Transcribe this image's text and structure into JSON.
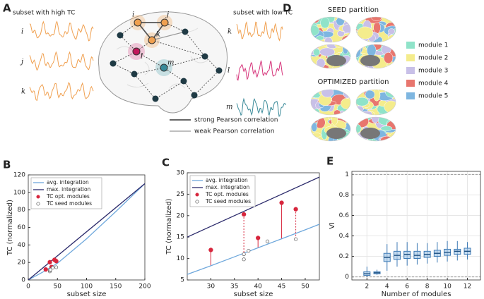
{
  "panel_a": {
    "label": "A",
    "high_tc_title": "subset with high TC",
    "high_tc_nodes": [
      "i",
      "j",
      "k"
    ],
    "network_nodes": [
      "i",
      "j",
      "k",
      "l",
      "m"
    ],
    "low_tc_title": "subset with low TC",
    "low_tc_nodes": [
      "k",
      "l",
      "m"
    ],
    "legend": [
      "strong Pearson correlation",
      "weak Pearson correlation"
    ]
  },
  "panel_d": {
    "label": "D",
    "seed_title": "SEED partition",
    "optimized_title": "OPTIMIZED partition",
    "modules": [
      {
        "name": "module 1",
        "color": "#8fe3c9"
      },
      {
        "name": "module 2",
        "color": "#f4ec8c"
      },
      {
        "name": "module 3",
        "color": "#c8c0e8"
      },
      {
        "name": "module 4",
        "color": "#e8766e"
      },
      {
        "name": "module 5",
        "color": "#7eb6e0"
      }
    ]
  },
  "chart_data": [
    {
      "type": "line",
      "label": "B",
      "xlabel": "subset size",
      "ylabel": "TC (normalized)",
      "xlim": [
        0,
        200
      ],
      "ylim": [
        0,
        120
      ],
      "xticks": [
        0,
        50,
        100,
        150,
        200
      ],
      "yticks": [
        0,
        20,
        40,
        60,
        80,
        100,
        120
      ],
      "grid": false,
      "stems": false,
      "series": [
        {
          "name": "avg. integration",
          "kind": "line",
          "color": "#6fa8dc",
          "x": [
            0,
            25,
            50,
            100,
            150,
            200
          ],
          "values": [
            0,
            9,
            19,
            47,
            78,
            110
          ]
        },
        {
          "name": "max. integration",
          "kind": "line",
          "color": "#2b2a6b",
          "x": [
            0,
            200
          ],
          "values": [
            0,
            110
          ]
        },
        {
          "name": "TC opt. modules",
          "kind": "scatter",
          "marker": "filled",
          "color": "#d7263d",
          "x": [
            30,
            37,
            40,
            45,
            48
          ],
          "values": [
            12,
            20.3,
            14.8,
            23,
            21.5
          ]
        },
        {
          "name": "TC seed modules",
          "kind": "scatter",
          "marker": "open",
          "color": "#555555",
          "x": [
            37,
            37,
            38,
            42,
            48
          ],
          "values": [
            9.8,
            11,
            11.8,
            14,
            14.5
          ]
        }
      ]
    },
    {
      "type": "line",
      "label": "C",
      "xlabel": "subset size",
      "ylabel": "TC (normalized)",
      "xlim": [
        25,
        53
      ],
      "ylim": [
        5,
        30
      ],
      "xticks": [
        30,
        35,
        40,
        45,
        50
      ],
      "yticks": [
        5,
        10,
        15,
        20,
        25,
        30
      ],
      "grid": false,
      "stems": true,
      "series": [
        {
          "name": "avg. integration",
          "kind": "line",
          "color": "#6fa8dc",
          "x": [
            25,
            30,
            35,
            40,
            45,
            50,
            53
          ],
          "values": [
            6.3,
            8.3,
            10.4,
            12.5,
            14.6,
            16.7,
            18
          ]
        },
        {
          "name": "max. integration",
          "kind": "line",
          "color": "#2b2a6b",
          "x": [
            25,
            53
          ],
          "values": [
            15,
            29
          ]
        },
        {
          "name": "TC opt. modules",
          "kind": "scatter",
          "marker": "filled",
          "color": "#d7263d",
          "x": [
            30,
            37,
            40,
            45,
            48
          ],
          "values": [
            12,
            20.3,
            14.8,
            23,
            21.5
          ]
        },
        {
          "name": "TC seed modules",
          "kind": "scatter",
          "marker": "open",
          "color": "#555555",
          "x": [
            37,
            37,
            38,
            42,
            48
          ],
          "values": [
            9.8,
            11,
            11.8,
            14,
            14.5
          ]
        }
      ]
    },
    {
      "type": "box",
      "label": "E",
      "xlabel": "Number of modules",
      "ylabel": "VI",
      "color": "#3d7ab5",
      "xlim": [
        0.5,
        13.3
      ],
      "ylim": [
        -0.03,
        1.03
      ],
      "xticks": [
        2,
        4,
        6,
        8,
        10,
        12
      ],
      "yticks": [
        0,
        0.2,
        0.4,
        0.6,
        0.8,
        1
      ],
      "grid": true,
      "reference_lines": [
        0,
        1
      ],
      "x": [
        2,
        3,
        4,
        5,
        6,
        7,
        8,
        9,
        10,
        11,
        12
      ],
      "boxes": [
        {
          "low": 0,
          "q1": 0.015,
          "median": 0.03,
          "q3": 0.05,
          "high": 0.1
        },
        {
          "low": 0.02,
          "q1": 0.03,
          "median": 0.04,
          "q3": 0.05,
          "high": 0.07
        },
        {
          "low": 0.06,
          "q1": 0.15,
          "median": 0.19,
          "q3": 0.23,
          "high": 0.32
        },
        {
          "low": 0.1,
          "q1": 0.17,
          "median": 0.21,
          "q3": 0.25,
          "high": 0.34
        },
        {
          "low": 0.11,
          "q1": 0.18,
          "median": 0.22,
          "q3": 0.25,
          "high": 0.34
        },
        {
          "low": 0.12,
          "q1": 0.18,
          "median": 0.21,
          "q3": 0.25,
          "high": 0.33
        },
        {
          "low": 0.13,
          "q1": 0.19,
          "median": 0.22,
          "q3": 0.25,
          "high": 0.33
        },
        {
          "low": 0.14,
          "q1": 0.2,
          "median": 0.23,
          "q3": 0.26,
          "high": 0.34
        },
        {
          "low": 0.15,
          "q1": 0.21,
          "median": 0.24,
          "q3": 0.27,
          "high": 0.35
        },
        {
          "low": 0.16,
          "q1": 0.22,
          "median": 0.25,
          "q3": 0.27,
          "high": 0.35
        },
        {
          "low": 0.17,
          "q1": 0.22,
          "median": 0.25,
          "q3": 0.28,
          "high": 0.34
        }
      ]
    }
  ]
}
